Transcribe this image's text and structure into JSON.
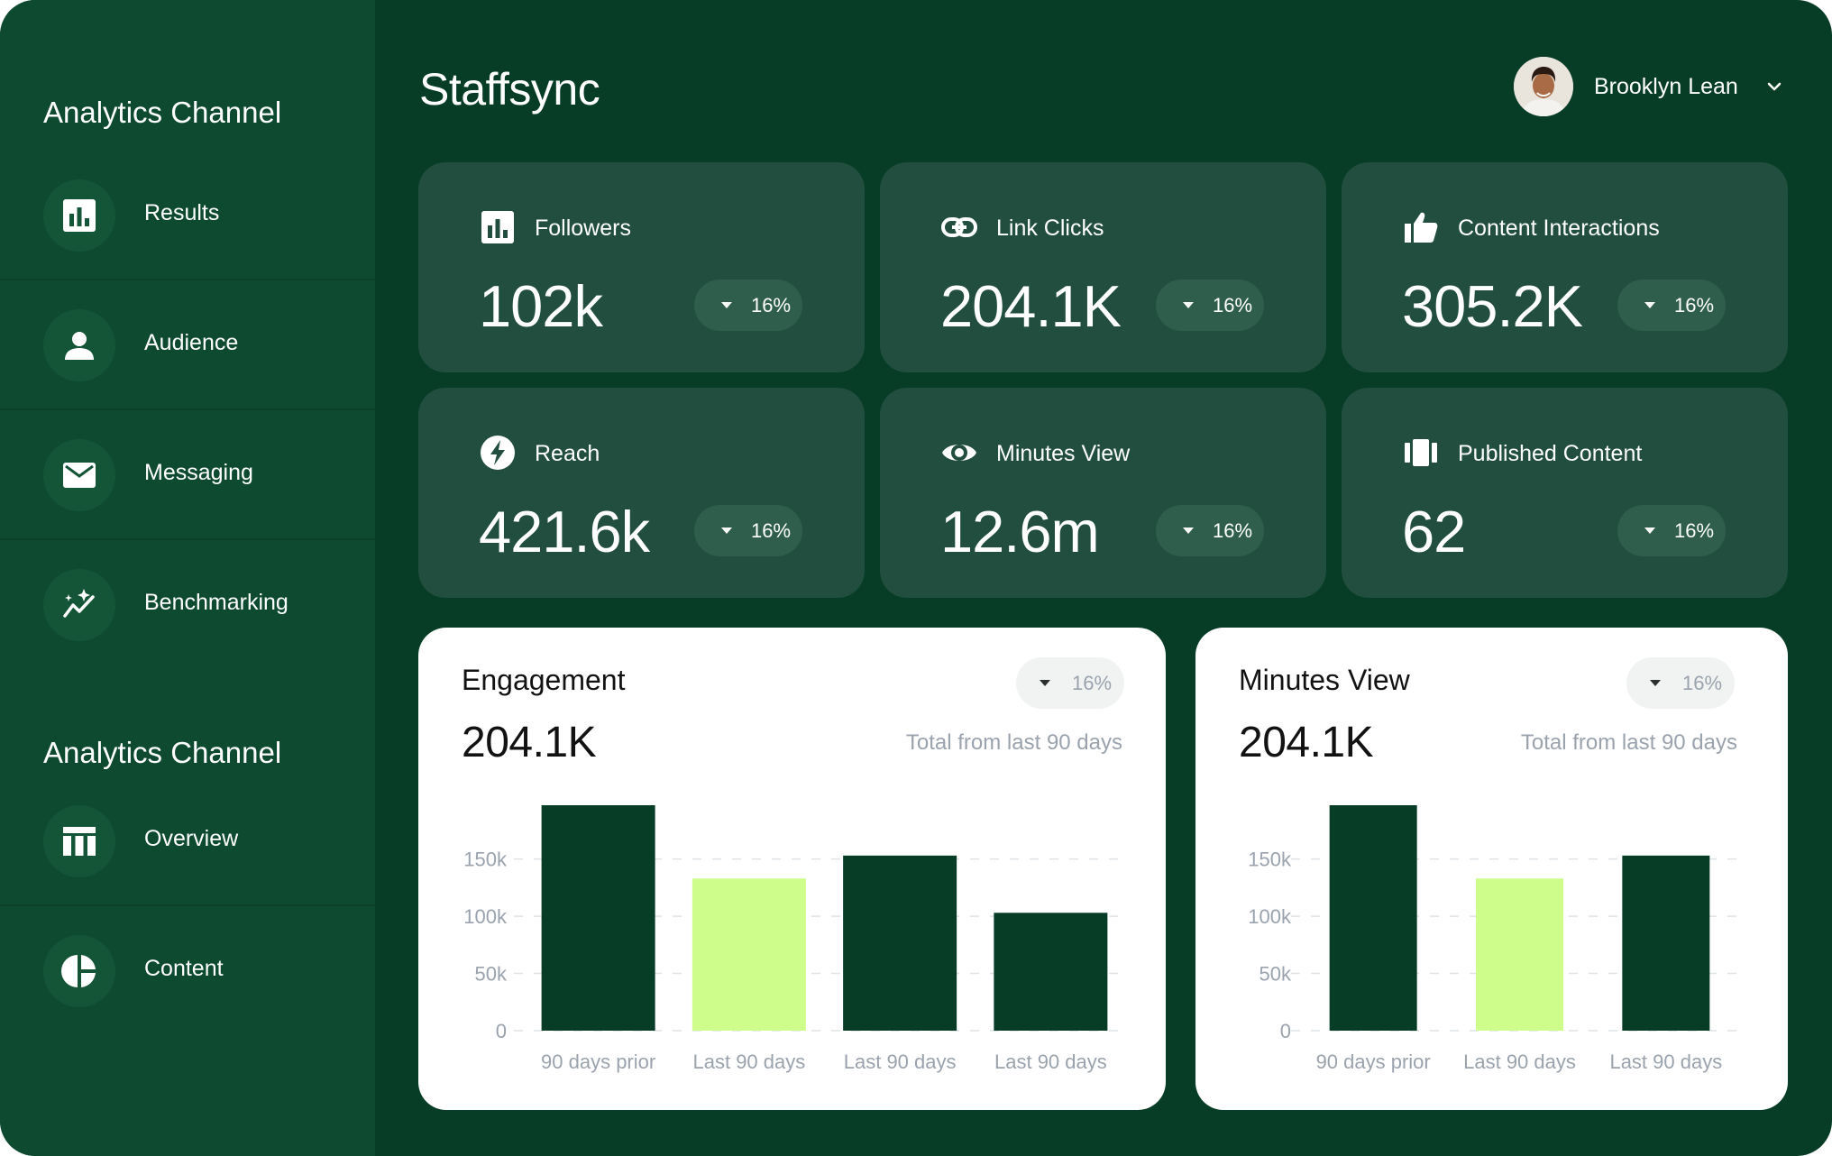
{
  "sidebar": {
    "section1_title": "Analytics Channel",
    "section2_title": "Analytics Channel",
    "items": [
      {
        "label": "Results"
      },
      {
        "label": "Audience"
      },
      {
        "label": "Messaging"
      },
      {
        "label": "Benchmarking"
      },
      {
        "label": "Overview"
      },
      {
        "label": "Content"
      }
    ]
  },
  "header": {
    "brand": "Staffsync",
    "user_name": "Brooklyn Lean"
  },
  "stats": [
    {
      "title": "Followers",
      "value": "102k",
      "change": "16%",
      "icon": "bar-chart-icon"
    },
    {
      "title": "Link Clicks",
      "value": "204.1K",
      "change": "16%",
      "icon": "link-icon"
    },
    {
      "title": "Content Interactions",
      "value": "305.2K",
      "change": "16%",
      "icon": "thumbs-up-icon"
    },
    {
      "title": "Reach",
      "value": "421.6k",
      "change": "16%",
      "icon": "lightning-icon"
    },
    {
      "title": "Minutes View",
      "value": "12.6m",
      "change": "16%",
      "icon": "eye-icon"
    },
    {
      "title": "Published Content",
      "value": "62",
      "change": "16%",
      "icon": "cards-icon"
    }
  ],
  "colors": {
    "dark_green": "#073d27",
    "lime": "#cffd8c",
    "card": "#214e3e"
  },
  "panels": [
    {
      "title": "Engagement",
      "value": "204.1K",
      "change": "16%",
      "subtitle": "Total from last 90 days"
    },
    {
      "title": "Minutes View",
      "value": "204.1K",
      "change": "16%",
      "subtitle": "Total from last 90 days"
    }
  ],
  "chart_data": [
    {
      "type": "bar",
      "title": "Engagement",
      "categories": [
        "90 days prior",
        "Last 90 days",
        "Last 90 days",
        "Last 90 days"
      ],
      "values": [
        197000,
        133000,
        153000,
        103000
      ],
      "colors": [
        "#073d27",
        "#cffd8c",
        "#073d27",
        "#073d27"
      ],
      "yticks": [
        "0",
        "50k",
        "100k",
        "150k"
      ],
      "ylim": [
        0,
        197000
      ],
      "grid": true
    },
    {
      "type": "bar",
      "title": "Minutes View",
      "categories": [
        "90 days prior",
        "Last 90 days",
        "Last 90 days"
      ],
      "values": [
        197000,
        133000,
        153000
      ],
      "colors": [
        "#073d27",
        "#cffd8c",
        "#073d27"
      ],
      "yticks": [
        "0",
        "50k",
        "100k",
        "150k"
      ],
      "ylim": [
        0,
        197000
      ],
      "grid": true
    }
  ]
}
